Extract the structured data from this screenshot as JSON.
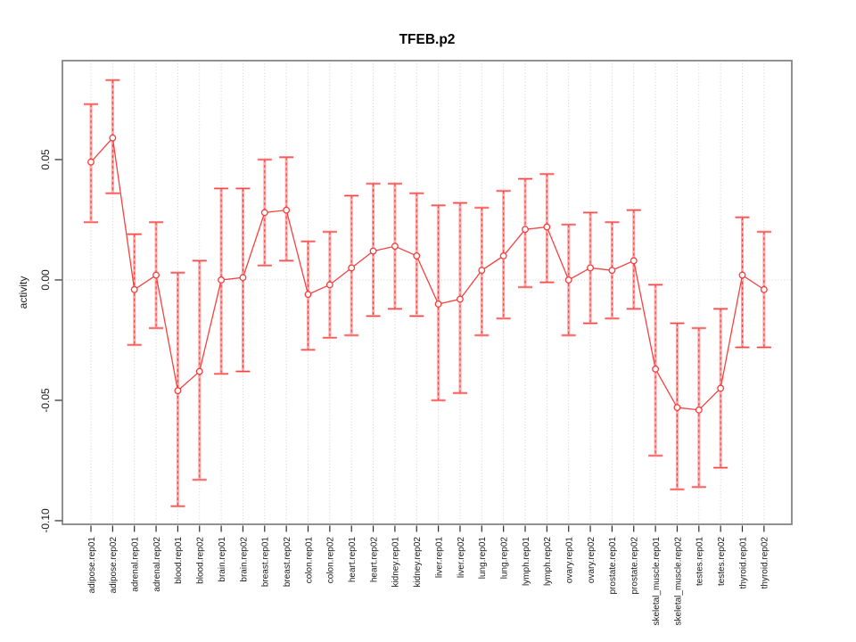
{
  "window": {
    "background": "#ffffff"
  },
  "chart_data": {
    "type": "line",
    "title": "TFEB.p2",
    "xlabel": "",
    "ylabel": "activity",
    "legend_position": "none",
    "grid": {
      "vertical_dotted_per_category": true,
      "horizontal_dotted_at_zero": true
    },
    "ylim": [
      -0.1015,
      0.0911
    ],
    "yticks": [
      0.05,
      0.0,
      -0.05,
      -0.1
    ],
    "ytick_labels": [
      "0.05",
      "0.00",
      "-0.05",
      "-0.10"
    ],
    "categories": [
      "adipose.rep01",
      "adipose.rep02",
      "adrenal.rep01",
      "adrenal.rep02",
      "blood.rep01",
      "blood.rep02",
      "brain.rep01",
      "brain.rep02",
      "breast.rep01",
      "breast.rep02",
      "colon.rep01",
      "colon.rep02",
      "heart.rep01",
      "heart.rep02",
      "kidney.rep01",
      "kidney.rep02",
      "liver.rep01",
      "liver.rep02",
      "lung.rep01",
      "lung.rep02",
      "lymph.rep01",
      "lymph.rep02",
      "ovary.rep01",
      "ovary.rep02",
      "prostate.rep01",
      "prostate.rep02",
      "skeletal_muscle.rep01",
      "skeletal_muscle.rep02",
      "testes.rep01",
      "testes.rep02",
      "thyroid.rep01",
      "thyroid.rep02"
    ],
    "series": [
      {
        "name": "TFEB.p2 activity",
        "marker": "open-circle",
        "values": [
          0.049,
          0.059,
          -0.004,
          0.002,
          -0.046,
          -0.038,
          0.0,
          0.001,
          0.028,
          0.029,
          -0.006,
          -0.002,
          0.005,
          0.012,
          0.014,
          0.01,
          -0.01,
          -0.008,
          0.004,
          0.01,
          0.021,
          0.022,
          0.0,
          0.005,
          0.004,
          0.008,
          -0.037,
          -0.053,
          -0.054,
          -0.045,
          0.002,
          -0.004
        ],
        "error_upper": [
          0.073,
          0.083,
          0.019,
          0.024,
          0.003,
          0.008,
          0.038,
          0.038,
          0.05,
          0.051,
          0.016,
          0.02,
          0.035,
          0.04,
          0.04,
          0.036,
          0.031,
          0.032,
          0.03,
          0.037,
          0.042,
          0.044,
          0.023,
          0.028,
          0.024,
          0.029,
          -0.002,
          -0.018,
          -0.02,
          -0.012,
          0.026,
          0.02
        ],
        "error_lower": [
          0.024,
          0.036,
          -0.027,
          -0.02,
          -0.094,
          -0.083,
          -0.039,
          -0.038,
          0.006,
          0.008,
          -0.029,
          -0.024,
          -0.023,
          -0.015,
          -0.012,
          -0.015,
          -0.05,
          -0.047,
          -0.023,
          -0.016,
          -0.003,
          -0.001,
          -0.023,
          -0.018,
          -0.016,
          -0.012,
          -0.073,
          -0.087,
          -0.086,
          -0.078,
          -0.028,
          -0.028
        ]
      }
    ],
    "colors": {
      "line": "#f84040",
      "marker_stroke": "#f83b3b",
      "marker_fill": "#ffffff",
      "errorbar_band": "#ffa8a8",
      "errorbar_dash": "#f84040",
      "grid": "#cfcfcf",
      "box": "#858585",
      "axis_tick": "#2b2b2b",
      "tick_text": "#1c1c1c",
      "title_text": "#000000"
    }
  }
}
